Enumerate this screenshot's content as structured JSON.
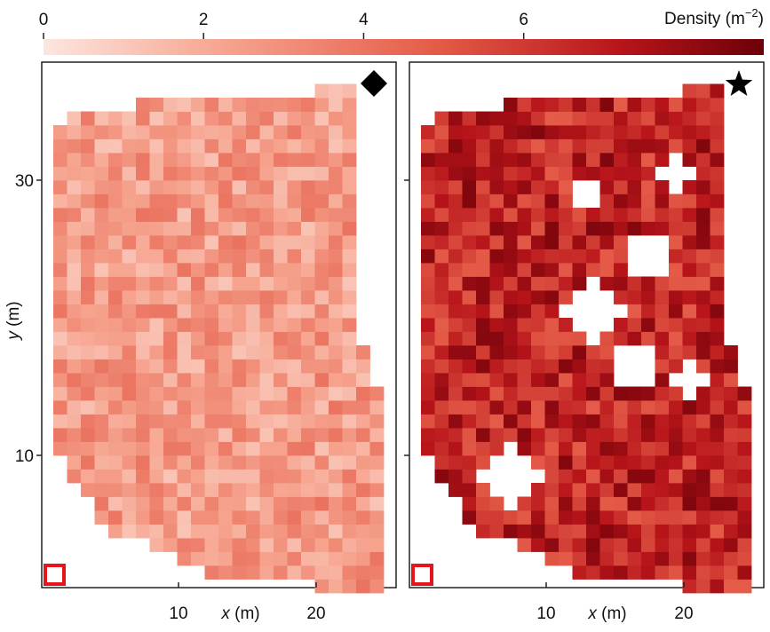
{
  "chart_data": {
    "type": "heatmap",
    "colorbar": {
      "label": "Density (m",
      "label_sup": "−2",
      "label_close": ")",
      "range": [
        0,
        9
      ],
      "ticks": [
        "0",
        "2",
        "4",
        "6"
      ],
      "tick_values": [
        0,
        2,
        4,
        6
      ],
      "colors": [
        "#fde6df",
        "#f6a48f",
        "#e45a47",
        "#b8151a",
        "#6d0008"
      ]
    },
    "x_axis": {
      "label_var": "x",
      "label_unit": " (m)",
      "ticks": [
        "10",
        "20"
      ],
      "tick_values": [
        10,
        20
      ]
    },
    "y_axis": {
      "label_var": "y",
      "label_unit": " (m)",
      "ticks": [
        "30",
        "10"
      ],
      "tick_values": [
        30,
        10
      ]
    },
    "grid_cell_size_m": 1,
    "panels": [
      {
        "marker": "diamond-icon",
        "mean_density": 2.6,
        "density_spread": 1.1,
        "holes": []
      },
      {
        "marker": "star-icon",
        "mean_density": 6.7,
        "density_spread": 1.4,
        "holes": [
          {
            "x": 12,
            "y": 29,
            "r": 1.2
          },
          {
            "x": 18.5,
            "y": 30.5,
            "r": 1.3
          },
          {
            "x": 16.5,
            "y": 24.5,
            "r": 1.6
          },
          {
            "x": 12.5,
            "y": 20.5,
            "r": 2.1
          },
          {
            "x": 15.5,
            "y": 16.5,
            "r": 1.6
          },
          {
            "x": 19.5,
            "y": 15.5,
            "r": 1.4
          },
          {
            "x": 6.5,
            "y": 8.5,
            "r": 2.2
          }
        ]
      }
    ]
  },
  "legend_markers": {
    "bottom_left_box_color": "#e8141b"
  }
}
